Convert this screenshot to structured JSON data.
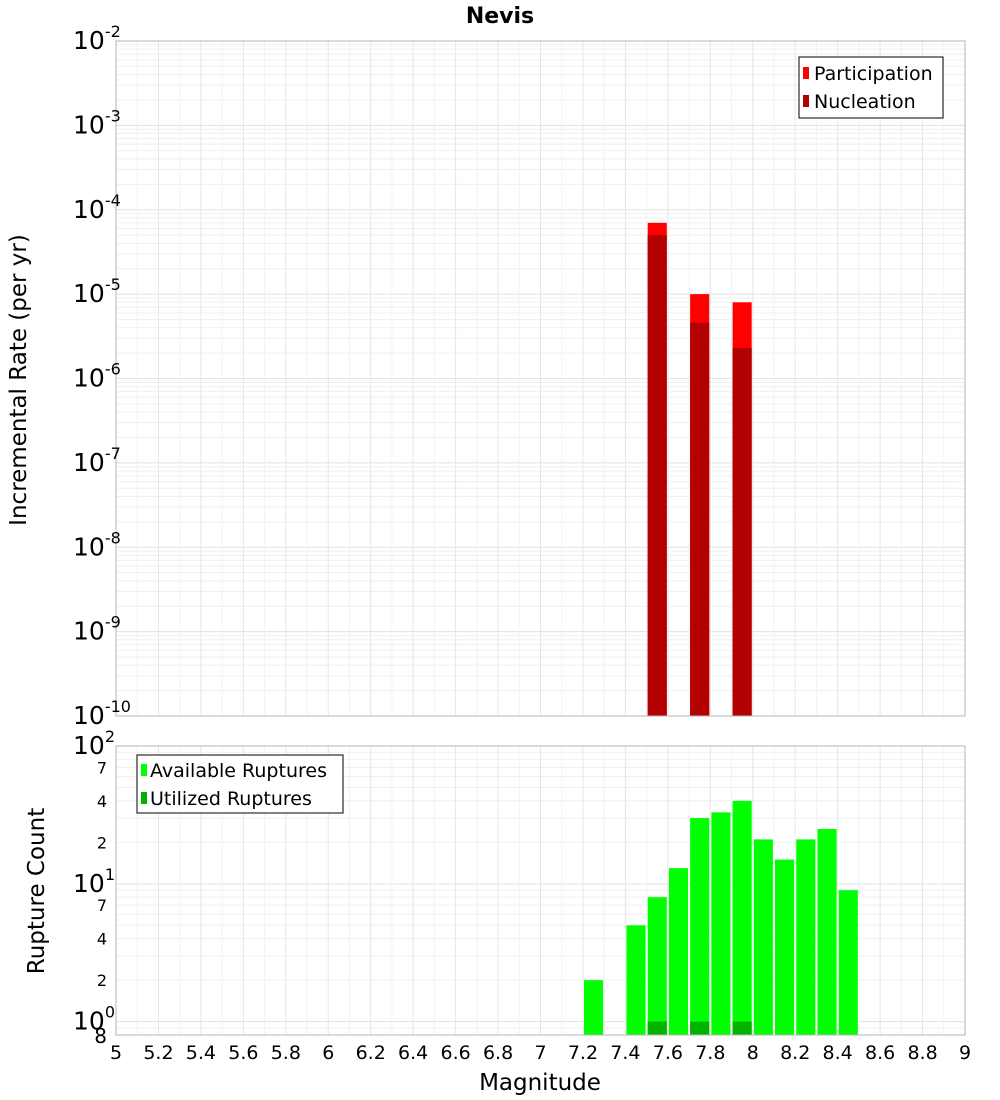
{
  "chart_data": [
    {
      "type": "bar",
      "title": "Nevis",
      "xlabel": "",
      "ylabel": "Incremental Rate (per yr)",
      "xlim": [
        5,
        9
      ],
      "y_scale": "log",
      "ylim": [
        1e-10,
        0.01
      ],
      "y_tick_exponents": [
        "-2",
        "-3",
        "-4",
        "-5",
        "-6",
        "-7",
        "-8",
        "-9",
        "-10"
      ],
      "y_tick_base": "10",
      "bar_width": 0.09,
      "series": [
        {
          "name": "Participation",
          "color": "#ff0000",
          "x": [
            7.55,
            7.75,
            7.95
          ],
          "values": [
            7e-05,
            1e-05,
            8e-06
          ]
        },
        {
          "name": "Nucleation",
          "color": "#b30000",
          "x": [
            7.55,
            7.75,
            7.95
          ],
          "values": [
            5e-05,
            4.6e-06,
            2.3e-06
          ]
        }
      ],
      "legend": "top-right",
      "grid": true
    },
    {
      "type": "bar",
      "title": "",
      "xlabel": "Magnitude",
      "ylabel": "Rupture Count",
      "xlim": [
        5,
        9
      ],
      "x_tick_labels": [
        "5",
        "5.2",
        "5.4",
        "5.6",
        "5.8",
        "6",
        "6.2",
        "6.4",
        "6.6",
        "6.8",
        "7",
        "7.2",
        "7.4",
        "7.6",
        "7.8",
        "8",
        "8.2",
        "8.4",
        "8.6",
        "8.8",
        "9"
      ],
      "y_scale": "log",
      "ylim": [
        0.8,
        100
      ],
      "y_major_ticks": [
        {
          "value": 100,
          "base": "10",
          "exp": "2"
        },
        {
          "value": 10,
          "base": "10",
          "exp": "1"
        },
        {
          "value": 1,
          "base": "10",
          "exp": "0"
        }
      ],
      "y_minor_ticks": [
        {
          "value": 70,
          "label": "7"
        },
        {
          "value": 40,
          "label": "4"
        },
        {
          "value": 20,
          "label": "2"
        },
        {
          "value": 7,
          "label": "7"
        },
        {
          "value": 4,
          "label": "4"
        },
        {
          "value": 2,
          "label": "2"
        },
        {
          "value": 0.8,
          "label": "8"
        }
      ],
      "bar_width": 0.09,
      "series": [
        {
          "name": "Available Ruptures",
          "color": "#00ff00",
          "x": [
            7.25,
            7.45,
            7.55,
            7.65,
            7.75,
            7.85,
            7.95,
            8.05,
            8.15,
            8.25,
            8.35,
            8.45
          ],
          "values": [
            2,
            5,
            8,
            13,
            30,
            33,
            40,
            21,
            15,
            21,
            25,
            9
          ]
        },
        {
          "name": "Utilized Ruptures",
          "color": "#00b300",
          "x": [
            7.55,
            7.75,
            7.95
          ],
          "values": [
            1,
            1,
            1
          ]
        }
      ],
      "legend": "top-left",
      "grid": true
    }
  ]
}
